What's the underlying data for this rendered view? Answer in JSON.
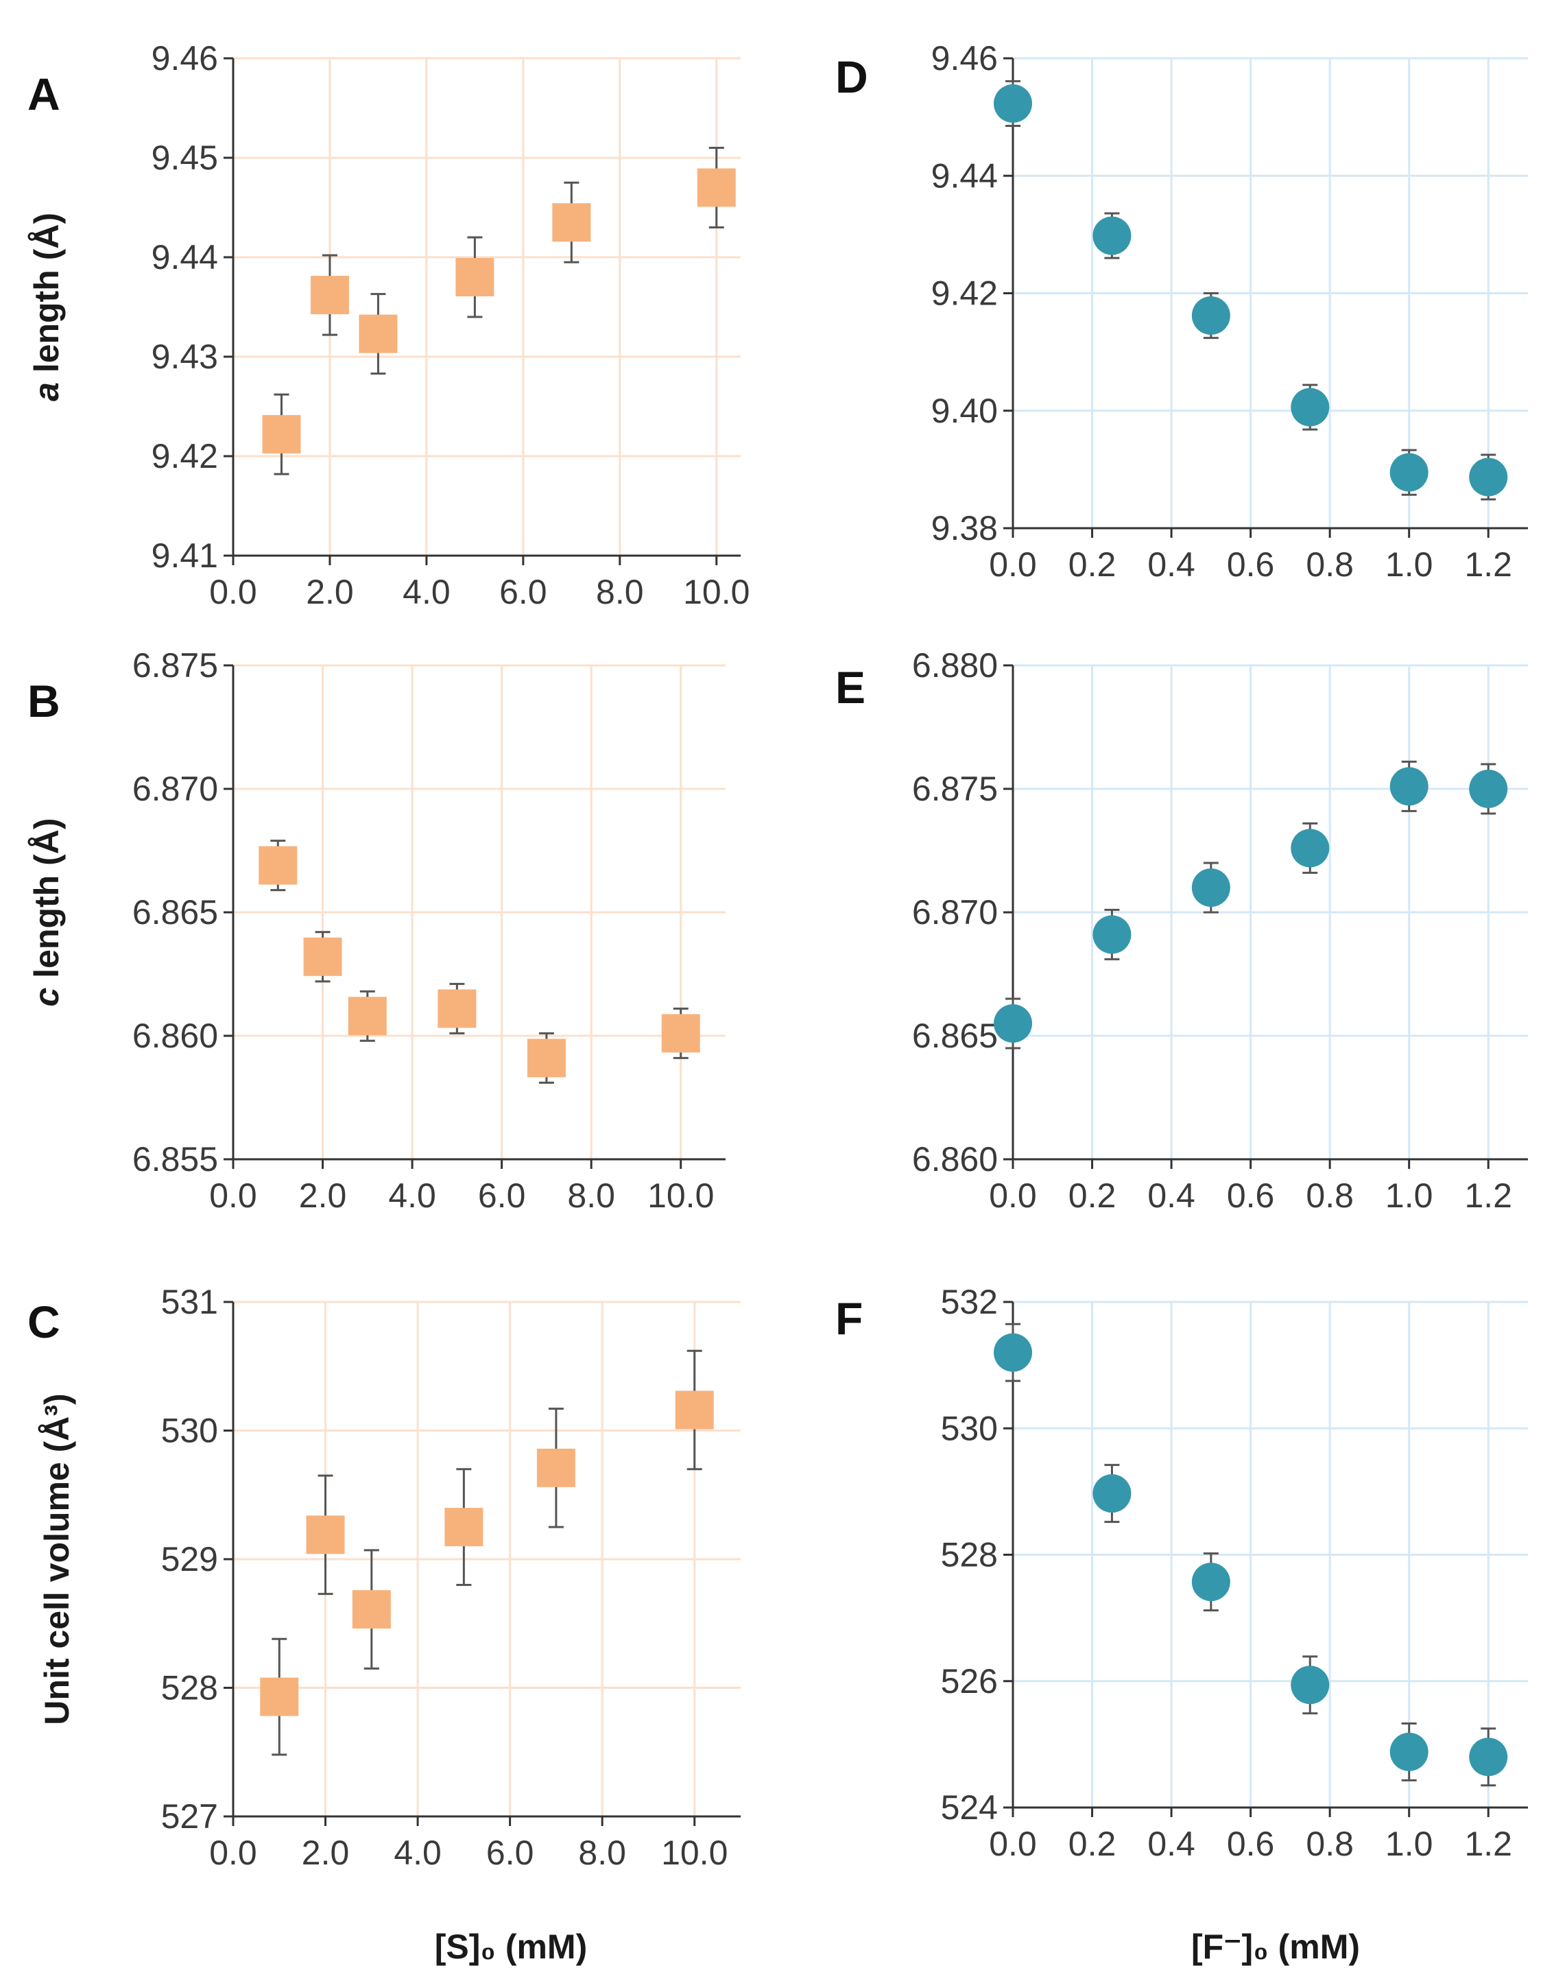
{
  "figure": {
    "x_title_left": "[S]₀ (mM)",
    "x_title_right": "[F⁻]₀ (mM)"
  },
  "colors": {
    "orange_marker": "#f7b27c",
    "orange_grid": "#fbe0cc",
    "teal_marker": "#3597ab",
    "teal_grid": "#d6e8f6",
    "axis": "#333333",
    "errorbar": "#555555"
  },
  "chart_data": [
    {
      "id": "A",
      "letter": "A",
      "type": "scatter",
      "marker": "square",
      "ylabel_italic": "a",
      "ylabel_rest": " length (Å)",
      "xlabel": "",
      "xlim": [
        0,
        10.5
      ],
      "ylim": [
        9.41,
        9.46
      ],
      "xticks": [
        0,
        2,
        4,
        6,
        8,
        10
      ],
      "xtick_labels": [
        "0.0",
        "2.0",
        "4.0",
        "6.0",
        "8.0",
        "10.0"
      ],
      "yticks": [
        9.41,
        9.42,
        9.43,
        9.44,
        9.45,
        9.46
      ],
      "ytick_labels": [
        "9.41",
        "9.42",
        "9.43",
        "9.44",
        "9.45",
        "9.46"
      ],
      "x": [
        1,
        2,
        3,
        5,
        7,
        10
      ],
      "y": [
        9.4222,
        9.4362,
        9.4323,
        9.438,
        9.4435,
        9.447
      ],
      "err": [
        0.004,
        0.004,
        0.004,
        0.004,
        0.004,
        0.004
      ]
    },
    {
      "id": "B",
      "letter": "B",
      "type": "scatter",
      "marker": "square",
      "ylabel_italic": "c",
      "ylabel_rest": " length (Å)",
      "xlabel": "",
      "xlim": [
        0,
        11
      ],
      "ylim": [
        6.855,
        6.875
      ],
      "xticks": [
        0,
        2,
        4,
        6,
        8,
        10
      ],
      "xtick_labels": [
        "0.0",
        "2.0",
        "4.0",
        "6.0",
        "8.0",
        "10.0"
      ],
      "yticks": [
        6.855,
        6.86,
        6.865,
        6.87,
        6.875
      ],
      "ytick_labels": [
        "6.855",
        "6.860",
        "6.865",
        "6.870",
        "6.875"
      ],
      "x": [
        1,
        2,
        3,
        5,
        7,
        10
      ],
      "y": [
        6.8669,
        6.8632,
        6.8608,
        6.8611,
        6.8591,
        6.8601
      ],
      "err": [
        0.001,
        0.001,
        0.001,
        0.001,
        0.001,
        0.001
      ]
    },
    {
      "id": "C",
      "letter": "C",
      "type": "scatter",
      "marker": "square",
      "ylabel_italic": "",
      "ylabel_rest": "Unit cell volume (Å³)",
      "xlabel": "[S]₀ (mM)",
      "xlim": [
        0,
        11
      ],
      "ylim": [
        527,
        531
      ],
      "xticks": [
        0,
        2,
        4,
        6,
        8,
        10
      ],
      "xtick_labels": [
        "0.0",
        "2.0",
        "4.0",
        "6.0",
        "8.0",
        "10.0"
      ],
      "yticks": [
        527,
        528,
        529,
        530,
        531
      ],
      "ytick_labels": [
        "527",
        "528",
        "529",
        "530",
        "531"
      ],
      "x": [
        1,
        2,
        3,
        5,
        7,
        10
      ],
      "y": [
        527.93,
        529.19,
        528.61,
        529.25,
        529.71,
        530.16
      ],
      "err": [
        0.45,
        0.46,
        0.46,
        0.45,
        0.46,
        0.46
      ]
    },
    {
      "id": "D",
      "letter": "D",
      "type": "scatter",
      "marker": "circle",
      "ylabel_italic": "",
      "ylabel_rest": "",
      "xlabel": "",
      "xlim": [
        0,
        1.3
      ],
      "ylim": [
        9.38,
        9.46
      ],
      "xticks": [
        0,
        0.2,
        0.4,
        0.6,
        0.8,
        1.0,
        1.2
      ],
      "xtick_labels": [
        "0.0",
        "0.2",
        "0.4",
        "0.6",
        "0.8",
        "1.0",
        "1.2"
      ],
      "yticks": [
        9.38,
        9.4,
        9.42,
        9.44,
        9.46
      ],
      "ytick_labels": [
        "9.38",
        "9.40",
        "9.42",
        "9.44",
        "9.46"
      ],
      "x": [
        0,
        0.25,
        0.5,
        0.75,
        1.0,
        1.2
      ],
      "y": [
        9.4523,
        9.4298,
        9.4162,
        9.4006,
        9.3895,
        9.3887
      ],
      "err": [
        0.0038,
        0.0038,
        0.0038,
        0.0038,
        0.0038,
        0.0038
      ]
    },
    {
      "id": "E",
      "letter": "E",
      "type": "scatter",
      "marker": "circle",
      "ylabel_italic": "",
      "ylabel_rest": "",
      "xlabel": "",
      "xlim": [
        0,
        1.3
      ],
      "ylim": [
        6.86,
        6.88
      ],
      "xticks": [
        0,
        0.2,
        0.4,
        0.6,
        0.8,
        1.0,
        1.2
      ],
      "xtick_labels": [
        "0.0",
        "0.2",
        "0.4",
        "0.6",
        "0.8",
        "1.0",
        "1.2"
      ],
      "yticks": [
        6.86,
        6.865,
        6.87,
        6.875,
        6.88
      ],
      "ytick_labels": [
        "6.860",
        "6.865",
        "6.870",
        "6.875",
        "6.880"
      ],
      "x": [
        0,
        0.25,
        0.5,
        0.75,
        1.0,
        1.2
      ],
      "y": [
        6.8655,
        6.8691,
        6.871,
        6.8726,
        6.8751,
        6.875
      ],
      "err": [
        0.001,
        0.001,
        0.001,
        0.001,
        0.001,
        0.001
      ]
    },
    {
      "id": "F",
      "letter": "F",
      "type": "scatter",
      "marker": "circle",
      "ylabel_italic": "",
      "ylabel_rest": "",
      "xlabel": "[F⁻]₀ (mM)",
      "xlim": [
        0,
        1.3
      ],
      "ylim": [
        524,
        532
      ],
      "xticks": [
        0,
        0.2,
        0.4,
        0.6,
        0.8,
        1.0,
        1.2
      ],
      "xtick_labels": [
        "0.0",
        "0.2",
        "0.4",
        "0.6",
        "0.8",
        "1.0",
        "1.2"
      ],
      "yticks": [
        524,
        526,
        528,
        530,
        532
      ],
      "ytick_labels": [
        "524",
        "526",
        "528",
        "530",
        "532"
      ],
      "x": [
        0,
        0.25,
        0.5,
        0.75,
        1.0,
        1.2
      ],
      "y": [
        531.2,
        528.97,
        527.57,
        525.94,
        524.88,
        524.8
      ],
      "err": [
        0.45,
        0.45,
        0.45,
        0.45,
        0.45,
        0.45
      ]
    }
  ]
}
